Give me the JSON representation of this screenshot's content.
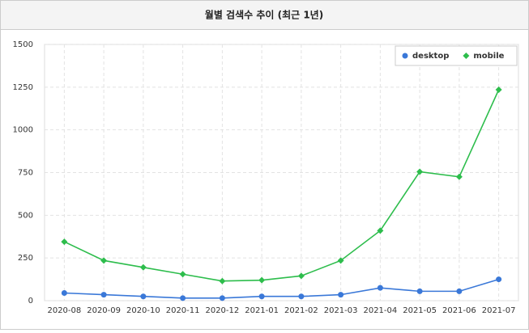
{
  "chart_data": {
    "type": "line",
    "title": "월별 검색수 추이 (최근 1년)",
    "categories": [
      "2020-08",
      "2020-09",
      "2020-10",
      "2020-11",
      "2020-12",
      "2021-01",
      "2021-02",
      "2021-03",
      "2021-04",
      "2021-05",
      "2021-06",
      "2021-07"
    ],
    "series": [
      {
        "name": "desktop",
        "color": "#3a78d8",
        "marker": "circle",
        "values": [
          45,
          35,
          25,
          15,
          15,
          25,
          25,
          35,
          75,
          55,
          55,
          125
        ]
      },
      {
        "name": "mobile",
        "color": "#2dbd4c",
        "marker": "diamond",
        "values": [
          345,
          235,
          195,
          155,
          115,
          120,
          145,
          235,
          410,
          755,
          725,
          1235
        ]
      }
    ],
    "ylim": [
      0,
      1500
    ],
    "yticks": [
      0,
      250,
      500,
      750,
      1000,
      1250,
      1500
    ],
    "grid": true,
    "legend": "top-right"
  }
}
